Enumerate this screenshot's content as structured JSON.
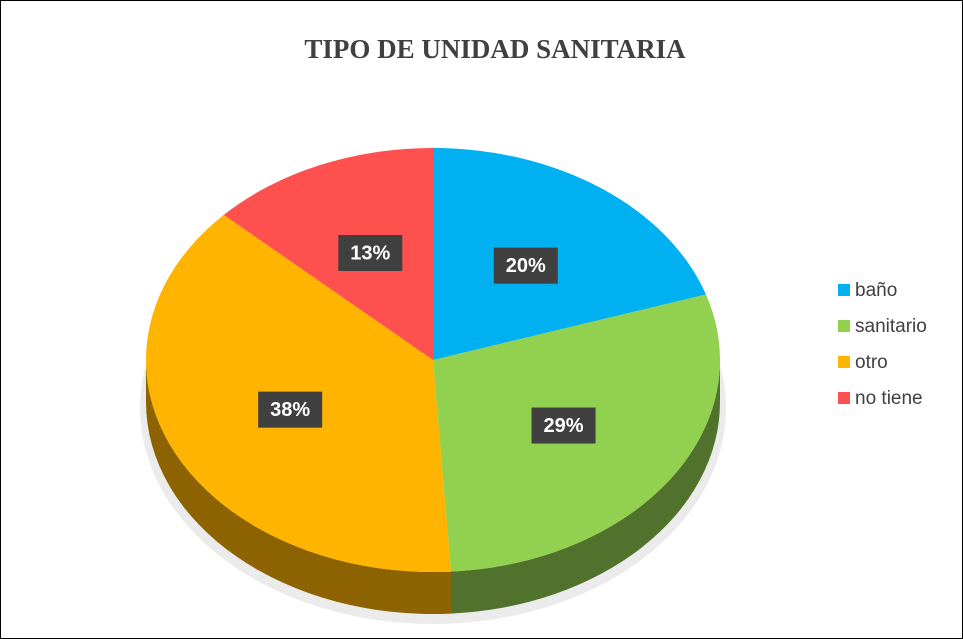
{
  "chart_data": {
    "type": "pie",
    "title": "TIPO DE UNIDAD SANITARIA",
    "categories": [
      "baño",
      "sanitario",
      "otro",
      "no tiene"
    ],
    "values": [
      20,
      29,
      38,
      13
    ],
    "value_labels": [
      "20%",
      "29%",
      "38%",
      "13%"
    ],
    "colors": [
      "#00b0f0",
      "#92d050",
      "#ffb400",
      "#ff5050"
    ],
    "legend": "right"
  }
}
